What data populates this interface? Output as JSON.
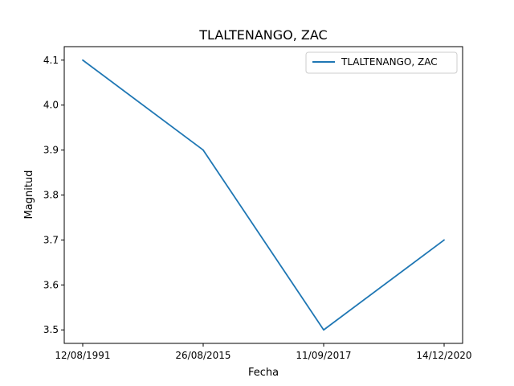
{
  "chart_data": {
    "type": "line",
    "title": "TLALTENANGO, ZAC",
    "xlabel": "Fecha",
    "ylabel": "Magnitud",
    "categories": [
      "12/08/1991",
      "26/08/2015",
      "11/09/2017",
      "14/12/2020"
    ],
    "series": [
      {
        "name": "TLALTENANGO, ZAC",
        "values": [
          4.1,
          3.9,
          3.5,
          3.7
        ],
        "color": "#1f77b4"
      }
    ],
    "yticks": [
      "3.5",
      "3.6",
      "3.7",
      "3.8",
      "3.9",
      "4.0",
      "4.1"
    ],
    "ylim": [
      3.47,
      4.13
    ],
    "grid": false,
    "legend_position": "top-right"
  }
}
